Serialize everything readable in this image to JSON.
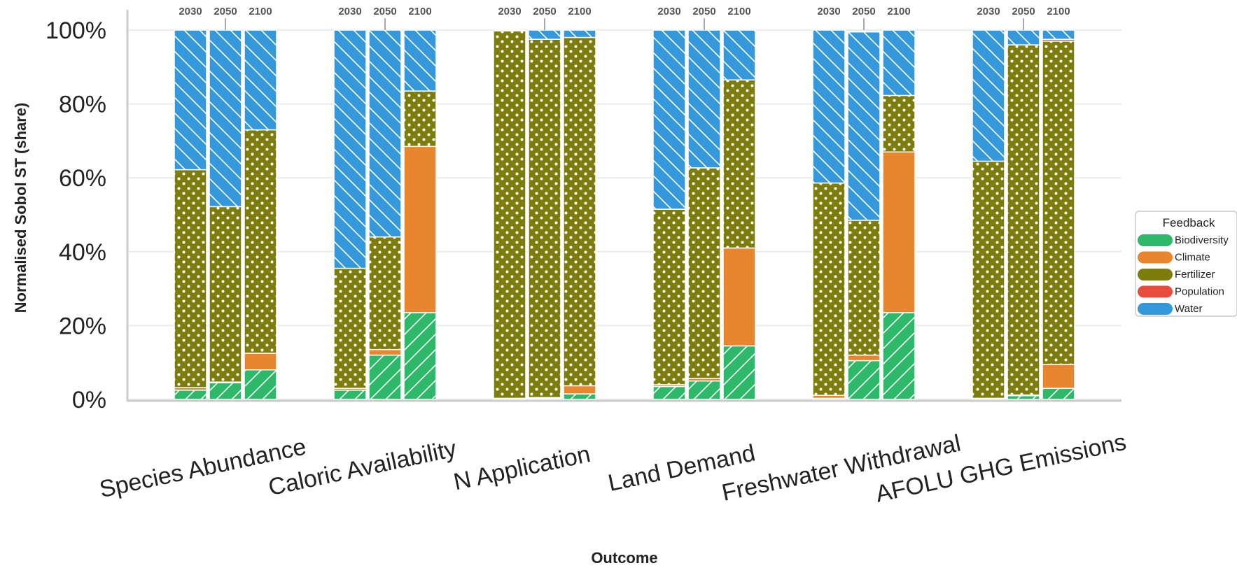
{
  "chart_data": {
    "type": "bar",
    "stacked": true,
    "normalized": true,
    "ylabel": "Normalised Sobol ST (share)",
    "xlabel": "Outcome",
    "ylim": [
      0,
      100
    ],
    "yticks": [
      "0%",
      "20%",
      "40%",
      "60%",
      "80%",
      "100%"
    ],
    "ytick_values": [
      0,
      20,
      40,
      60,
      80,
      100
    ],
    "grid": true,
    "legend": {
      "title": "Feedback",
      "placement": "right"
    },
    "years": [
      "2030",
      "2050",
      "2100"
    ],
    "categories": [
      "Species Abundance",
      "Caloric Availability",
      "N Application",
      "Land Demand",
      "Freshwater Withdrawal",
      "AFOLU GHG Emissions"
    ],
    "series": [
      {
        "name": "Biodiversity",
        "color": "#2eb86a",
        "pattern": "diagonal",
        "values": [
          [
            2.5,
            4.5,
            8
          ],
          [
            2.5,
            12,
            23.5
          ],
          [
            0.2,
            0.3,
            1.5
          ],
          [
            3.5,
            5,
            14.5
          ],
          [
            0.3,
            10.5,
            23.5
          ],
          [
            0.2,
            1,
            3
          ]
        ]
      },
      {
        "name": "Climate",
        "color": "#e8852f",
        "pattern": "none",
        "values": [
          [
            0.7,
            0.2,
            4.5
          ],
          [
            0.5,
            1.5,
            45
          ],
          [
            0.1,
            0.2,
            2.2
          ],
          [
            0.5,
            0.7,
            26.5
          ],
          [
            0.8,
            1.5,
            43.5
          ],
          [
            0.1,
            0.2,
            6.5
          ]
        ]
      },
      {
        "name": "Fertilizer",
        "color": "#7d7d0e",
        "pattern": "dots",
        "values": [
          [
            59,
            47.5,
            60.5
          ],
          [
            32.5,
            30.5,
            15
          ],
          [
            99.5,
            97,
            94.3
          ],
          [
            47.5,
            57,
            45.5
          ],
          [
            57.5,
            36.5,
            15.3
          ],
          [
            64.2,
            94.8,
            87.5
          ]
        ]
      },
      {
        "name": "Population",
        "color": "#e74c3c",
        "pattern": "none",
        "values": [
          [
            0,
            0,
            0
          ],
          [
            0,
            0,
            0
          ],
          [
            0,
            0,
            0
          ],
          [
            0,
            0,
            0
          ],
          [
            0,
            0,
            0
          ],
          [
            0,
            0,
            0.5
          ]
        ]
      },
      {
        "name": "Water",
        "color": "#3498db",
        "pattern": "backslash",
        "values": [
          [
            37.8,
            47.8,
            27
          ],
          [
            64.5,
            56,
            16.5
          ],
          [
            0.2,
            2.5,
            2
          ],
          [
            48.5,
            37.3,
            13.5
          ],
          [
            41.4,
            51,
            17.7
          ],
          [
            35.5,
            4,
            2.5
          ]
        ]
      }
    ]
  }
}
